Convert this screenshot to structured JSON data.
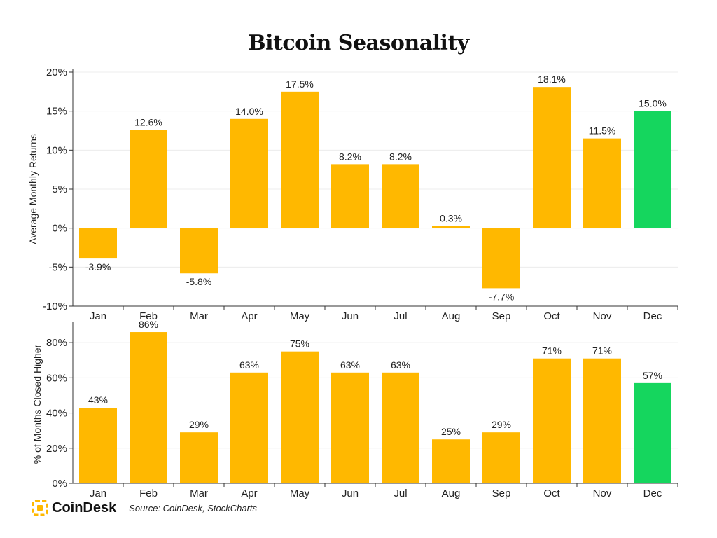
{
  "title": "Bitcoin Seasonality",
  "footer": {
    "brand": "CoinDesk",
    "source": "Source: CoinDesk, StockCharts"
  },
  "colors": {
    "bar": "#FFB800",
    "highlight": "#15D65E",
    "grid": "#ececec",
    "axis": "#333333"
  },
  "chart_data": [
    {
      "type": "bar",
      "ylabel": "Average Monthly Returns",
      "categories": [
        "Jan",
        "Feb",
        "Mar",
        "Apr",
        "May",
        "Jun",
        "Jul",
        "Aug",
        "Sep",
        "Oct",
        "Nov",
        "Dec"
      ],
      "values": [
        -3.9,
        12.6,
        -5.8,
        14.0,
        17.5,
        8.2,
        8.2,
        0.3,
        -7.7,
        18.1,
        11.5,
        15.0
      ],
      "data_labels": [
        "-3.9%",
        "12.6%",
        "-5.8%",
        "14.0%",
        "17.5%",
        "8.2%",
        "8.2%",
        "0.3%",
        "-7.7%",
        "18.1%",
        "11.5%",
        "15.0%"
      ],
      "highlight": "Dec",
      "ylim": [
        -10,
        20
      ],
      "yticks": [
        20,
        15,
        10,
        5,
        0,
        -5,
        -10
      ],
      "ytick_labels": [
        "20%",
        "15%",
        "10%",
        "5%",
        "0%",
        "-5%",
        "-10%"
      ],
      "grid": true
    },
    {
      "type": "bar",
      "ylabel": "% of Months Closed Higher",
      "categories": [
        "Jan",
        "Feb",
        "Mar",
        "Apr",
        "May",
        "Jun",
        "Jul",
        "Aug",
        "Sep",
        "Oct",
        "Nov",
        "Dec"
      ],
      "values": [
        43,
        86,
        29,
        63,
        75,
        63,
        63,
        25,
        29,
        71,
        71,
        57
      ],
      "data_labels": [
        "43%",
        "86%",
        "29%",
        "63%",
        "75%",
        "63%",
        "63%",
        "25%",
        "29%",
        "71%",
        "71%",
        "57%"
      ],
      "highlight": "Dec",
      "ylim": [
        0,
        90
      ],
      "yticks": [
        80,
        60,
        40,
        20,
        0
      ],
      "ytick_labels": [
        "80%",
        "60%",
        "40%",
        "20%",
        "0%"
      ],
      "grid": true
    }
  ]
}
